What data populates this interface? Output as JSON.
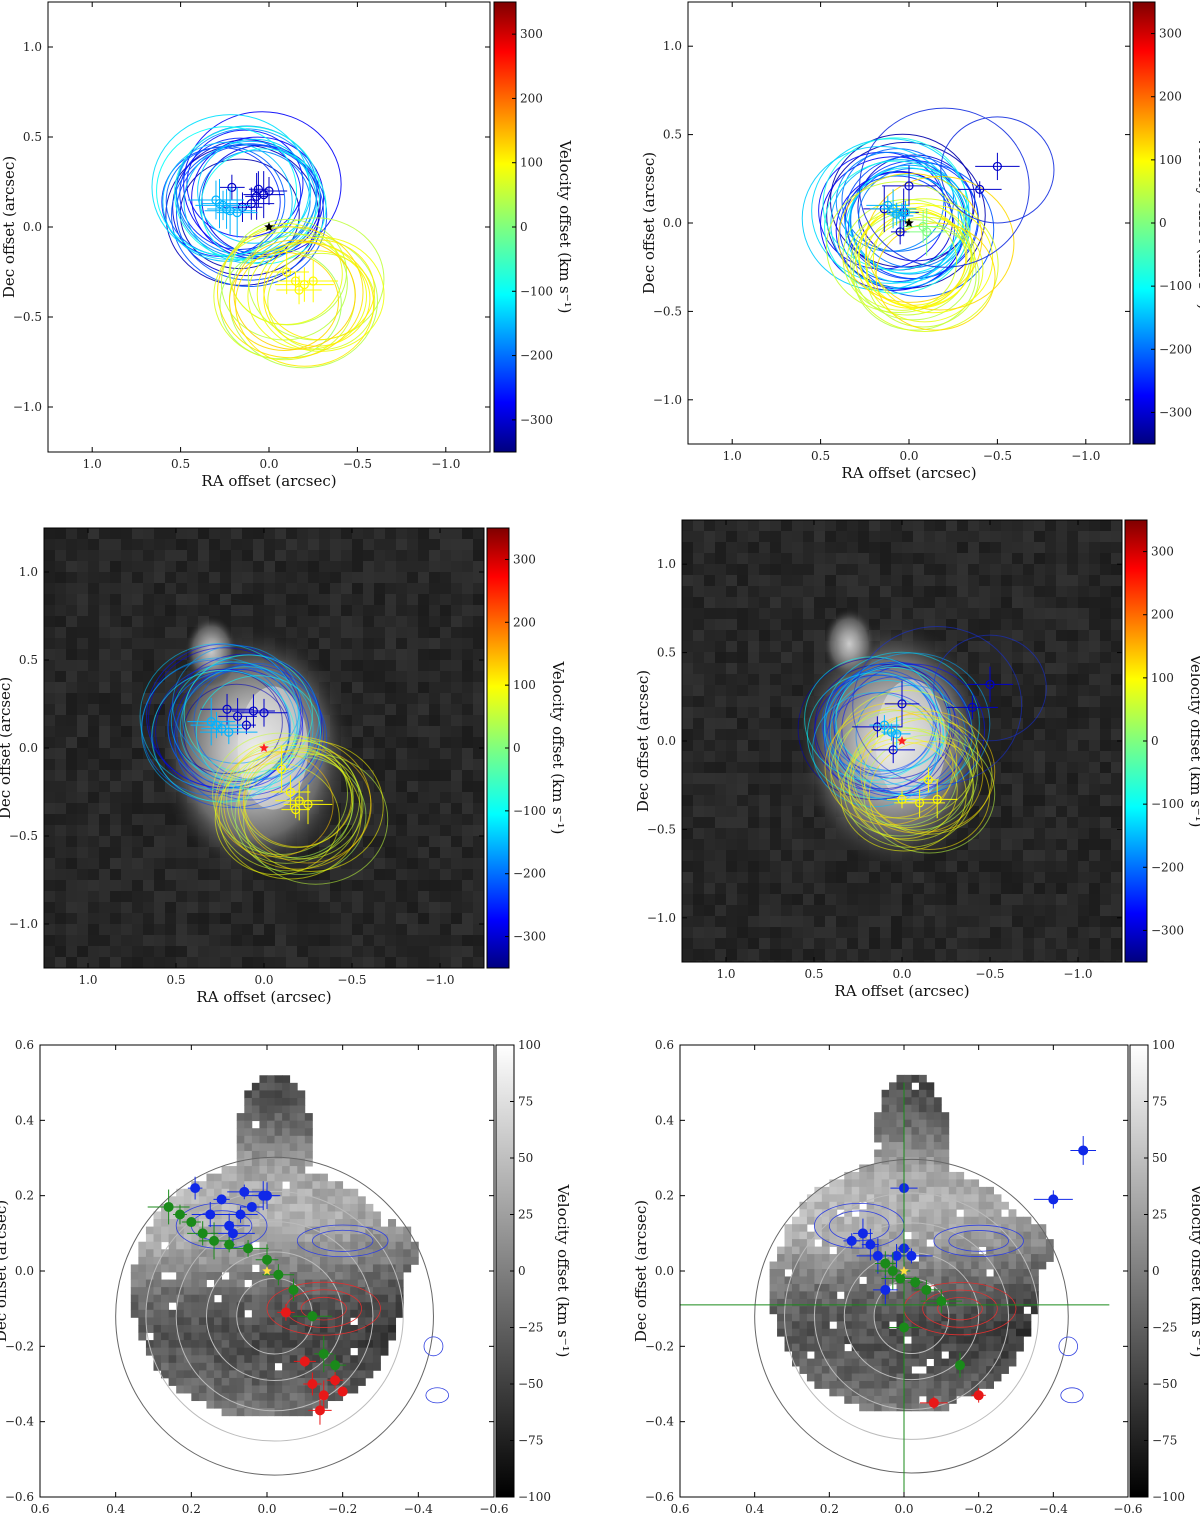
{
  "figure": {
    "panels": [
      {
        "id": "top-left",
        "background": "white",
        "xlabel": "RA offset (arcsec)",
        "ylabel": "Dec offset (arcsec)",
        "xlim": [
          1.25,
          -1.25
        ],
        "ylim": [
          -1.25,
          1.25
        ],
        "xticks": [
          1.0,
          0.5,
          0.0,
          -0.5,
          -1.0
        ],
        "yticks": [
          -1.0,
          -0.5,
          0.0,
          0.5,
          1.0
        ],
        "colorbar": {
          "label": "Velocity offset (km s⁻¹)",
          "range": [
            -350,
            350
          ],
          "ticks": [
            -300,
            -200,
            -100,
            0,
            100,
            200,
            300
          ],
          "colormap": "jet"
        },
        "star_color": "#000000"
      },
      {
        "id": "top-right",
        "background": "white",
        "xlabel": "RA offset (arcsec)",
        "ylabel": "Dec offset (arcsec)",
        "xlim": [
          1.25,
          -1.25
        ],
        "ylim": [
          -1.25,
          1.25
        ],
        "xticks": [
          1.0,
          0.5,
          0.0,
          -0.5,
          -1.0
        ],
        "yticks": [
          -1.0,
          -0.5,
          0.0,
          0.5,
          1.0
        ],
        "colorbar": {
          "label": "Velocity offset (km s⁻¹)",
          "range": [
            -350,
            350
          ],
          "ticks": [
            -300,
            -200,
            -100,
            0,
            100,
            200,
            300
          ],
          "colormap": "jet"
        },
        "star_color": "#000000"
      },
      {
        "id": "middle-left",
        "background": "grayscale-image",
        "xlabel": "RA offset (arcsec)",
        "ylabel": "Dec offset (arcsec)",
        "xlim": [
          1.25,
          -1.25
        ],
        "ylim": [
          -1.25,
          1.25
        ],
        "xticks": [
          1.0,
          0.5,
          0.0,
          -0.5,
          -1.0
        ],
        "yticks": [
          -1.0,
          -0.5,
          0.0,
          0.5,
          1.0
        ],
        "colorbar": {
          "label": "Velocity offset (km s⁻¹)",
          "range": [
            -350,
            350
          ],
          "ticks": [
            -300,
            -200,
            -100,
            0,
            100,
            200,
            300
          ],
          "colormap": "jet"
        },
        "star_color": "#ff2020"
      },
      {
        "id": "middle-right",
        "background": "grayscale-image",
        "xlabel": "RA offset (arcsec)",
        "ylabel": "Dec offset (arcsec)",
        "xlim": [
          1.25,
          -1.25
        ],
        "ylim": [
          -1.25,
          1.25
        ],
        "xticks": [
          1.0,
          0.5,
          0.0,
          -0.5,
          -1.0
        ],
        "yticks": [
          -1.0,
          -0.5,
          0.0,
          0.5,
          1.0
        ],
        "colorbar": {
          "label": "Velocity offset (km s⁻¹)",
          "range": [
            -350,
            350
          ],
          "ticks": [
            -300,
            -200,
            -100,
            0,
            100,
            200,
            300
          ],
          "colormap": "jet"
        },
        "star_color": "#ff2020"
      },
      {
        "id": "bottom-left",
        "background": "velocity-map",
        "xlabel": "RA offset (arcsec)",
        "ylabel": "Dec offset (arcsec)",
        "xlim": [
          0.6,
          -0.6
        ],
        "ylim": [
          -0.6,
          0.6
        ],
        "xticks": [
          0.6,
          0.4,
          0.2,
          0.0,
          -0.2,
          -0.4,
          -0.6
        ],
        "yticks": [
          -0.6,
          -0.4,
          -0.2,
          0.0,
          0.2,
          0.4,
          0.6
        ],
        "colorbar": {
          "label": "Velocity offset (km s⁻¹)",
          "range": [
            -100,
            100
          ],
          "ticks": [
            -100,
            -75,
            -50,
            -25,
            0,
            25,
            50,
            75,
            100
          ],
          "colormap": "gray"
        },
        "star_color": "#ffe040"
      },
      {
        "id": "bottom-right",
        "background": "velocity-map",
        "xlabel": "RA offset (arcsec)",
        "ylabel": "Dec offset (arcsec)",
        "xlim": [
          0.6,
          -0.6
        ],
        "ylim": [
          -0.6,
          0.6
        ],
        "xticks": [
          0.6,
          0.4,
          0.2,
          0.0,
          -0.2,
          -0.4,
          -0.6
        ],
        "yticks": [
          -0.6,
          -0.4,
          -0.2,
          0.0,
          0.2,
          0.4,
          0.6
        ],
        "colorbar": {
          "label": "Velocity offset (km s⁻¹)",
          "range": [
            -100,
            100
          ],
          "ticks": [
            -100,
            -75,
            -50,
            -25,
            0,
            25,
            50,
            75,
            100
          ],
          "colormap": "gray"
        },
        "star_color": "#ffe040"
      }
    ]
  },
  "chart_data": [
    {
      "type": "scatter",
      "panel": "top-left",
      "title": "",
      "xlabel": "RA offset (arcsec)",
      "ylabel": "Dec offset (arcsec)",
      "xlim": [
        1.25,
        -1.25
      ],
      "ylim": [
        -1.25,
        1.25
      ],
      "points_blue": [
        [
          0.21,
          0.22
        ],
        [
          0.06,
          0.21
        ],
        [
          0.0,
          0.2
        ],
        [
          0.03,
          0.18
        ],
        [
          0.15,
          0.11
        ],
        [
          0.07,
          0.17
        ],
        [
          0.1,
          0.13
        ]
      ],
      "points_cyan": [
        [
          0.3,
          0.15
        ],
        [
          0.28,
          0.13
        ],
        [
          0.26,
          0.12
        ],
        [
          0.24,
          0.1
        ],
        [
          0.22,
          0.09
        ],
        [
          0.18,
          0.08
        ]
      ],
      "points_yellow": [
        [
          -0.1,
          -0.25
        ],
        [
          -0.15,
          -0.3
        ],
        [
          -0.2,
          -0.32
        ],
        [
          -0.17,
          -0.35
        ],
        [
          -0.25,
          -0.3
        ]
      ],
      "star": [
        0.0,
        0.0
      ]
    },
    {
      "type": "scatter",
      "panel": "top-right",
      "title": "",
      "xlabel": "RA offset (arcsec)",
      "ylabel": "Dec offset (arcsec)",
      "xlim": [
        1.25,
        -1.25
      ],
      "ylim": [
        -1.25,
        1.25
      ],
      "points_blue": [
        [
          0.0,
          0.21
        ],
        [
          0.14,
          0.08
        ],
        [
          0.05,
          -0.05
        ],
        [
          -0.4,
          0.19
        ],
        [
          -0.5,
          0.32
        ],
        [
          0.03,
          0.06
        ]
      ],
      "points_cyan": [
        [
          0.12,
          0.1
        ],
        [
          0.09,
          0.08
        ],
        [
          0.07,
          0.05
        ],
        [
          0.04,
          0.04
        ],
        [
          0.02,
          0.06
        ]
      ],
      "points_green": [
        [
          -0.08,
          -0.02
        ],
        [
          -0.1,
          -0.05
        ]
      ],
      "star": [
        0.0,
        0.0
      ]
    },
    {
      "type": "scatter",
      "panel": "middle-left",
      "title": "",
      "xlabel": "RA offset (arcsec)",
      "ylabel": "Dec offset (arcsec)",
      "xlim": [
        1.25,
        -1.25
      ],
      "ylim": [
        -1.25,
        1.25
      ],
      "points_blue": [
        [
          0.21,
          0.22
        ],
        [
          0.06,
          0.21
        ],
        [
          0.0,
          0.2
        ],
        [
          0.15,
          0.18
        ],
        [
          0.1,
          0.13
        ]
      ],
      "points_cyan": [
        [
          0.3,
          0.15
        ],
        [
          0.27,
          0.13
        ],
        [
          0.24,
          0.11
        ],
        [
          0.2,
          0.09
        ]
      ],
      "points_yellow": [
        [
          -0.1,
          -0.12
        ],
        [
          -0.15,
          -0.25
        ],
        [
          -0.2,
          -0.3
        ],
        [
          -0.25,
          -0.32
        ],
        [
          -0.18,
          -0.35
        ]
      ],
      "star": [
        0.0,
        0.0
      ]
    },
    {
      "type": "scatter",
      "panel": "middle-right",
      "title": "",
      "xlabel": "RA offset (arcsec)",
      "ylabel": "Dec offset (arcsec)",
      "xlim": [
        1.25,
        -1.25
      ],
      "ylim": [
        -1.25,
        1.25
      ],
      "points_blue": [
        [
          0.0,
          0.21
        ],
        [
          0.14,
          0.08
        ],
        [
          0.05,
          -0.05
        ],
        [
          -0.4,
          0.19
        ],
        [
          -0.5,
          0.32
        ]
      ],
      "points_cyan": [
        [
          0.1,
          0.09
        ],
        [
          0.06,
          0.05
        ],
        [
          0.03,
          0.04
        ]
      ],
      "points_yellow": [
        [
          -0.15,
          -0.22
        ],
        [
          -0.2,
          -0.33
        ],
        [
          -0.1,
          -0.35
        ],
        [
          0.0,
          -0.33
        ]
      ],
      "star": [
        0.0,
        0.0
      ]
    },
    {
      "type": "scatter",
      "panel": "bottom-left",
      "title": "",
      "xlabel": "RA offset (arcsec)",
      "ylabel": "Dec offset (arcsec)",
      "xlim": [
        0.6,
        -0.6
      ],
      "ylim": [
        -0.6,
        0.6
      ],
      "blue": [
        [
          0.19,
          0.22
        ],
        [
          0.06,
          0.21
        ],
        [
          0.0,
          0.2
        ],
        [
          0.12,
          0.19
        ],
        [
          0.15,
          0.15
        ],
        [
          0.1,
          0.12
        ],
        [
          0.07,
          0.15
        ],
        [
          0.04,
          0.17
        ],
        [
          0.01,
          0.2
        ],
        [
          0.09,
          0.1
        ]
      ],
      "green": [
        [
          0.26,
          0.17
        ],
        [
          0.23,
          0.15
        ],
        [
          0.2,
          0.13
        ],
        [
          0.17,
          0.1
        ],
        [
          0.14,
          0.08
        ],
        [
          0.1,
          0.07
        ],
        [
          0.05,
          0.06
        ],
        [
          0.0,
          0.03
        ],
        [
          -0.03,
          -0.01
        ],
        [
          -0.07,
          -0.05
        ],
        [
          -0.12,
          -0.12
        ],
        [
          -0.15,
          -0.22
        ],
        [
          -0.18,
          -0.25
        ]
      ],
      "red": [
        [
          -0.05,
          -0.11
        ],
        [
          -0.1,
          -0.24
        ],
        [
          -0.12,
          -0.3
        ],
        [
          -0.15,
          -0.33
        ],
        [
          -0.18,
          -0.29
        ],
        [
          -0.2,
          -0.32
        ],
        [
          -0.14,
          -0.37
        ]
      ],
      "star": [
        0.0,
        0.0
      ]
    },
    {
      "type": "scatter",
      "panel": "bottom-right",
      "title": "",
      "xlabel": "RA offset (arcsec)",
      "ylabel": "Dec offset (arcsec)",
      "xlim": [
        0.6,
        -0.6
      ],
      "ylim": [
        -0.6,
        0.6
      ],
      "blue": [
        [
          0.0,
          0.22
        ],
        [
          0.14,
          0.08
        ],
        [
          0.05,
          -0.05
        ],
        [
          -0.4,
          0.19
        ],
        [
          -0.48,
          0.32
        ],
        [
          0.11,
          0.1
        ],
        [
          0.09,
          0.07
        ],
        [
          0.07,
          0.04
        ],
        [
          0.02,
          0.04
        ],
        [
          0.0,
          0.06
        ],
        [
          -0.02,
          0.04
        ]
      ],
      "green": [
        [
          0.05,
          0.02
        ],
        [
          0.03,
          0.0
        ],
        [
          0.01,
          -0.02
        ],
        [
          -0.03,
          -0.03
        ],
        [
          -0.06,
          -0.05
        ],
        [
          -0.1,
          -0.08
        ],
        [
          -0.15,
          -0.25
        ],
        [
          0.0,
          -0.15
        ]
      ],
      "red": [
        [
          -0.08,
          -0.35
        ],
        [
          -0.2,
          -0.33
        ]
      ],
      "star": [
        0.0,
        0.0
      ]
    }
  ]
}
